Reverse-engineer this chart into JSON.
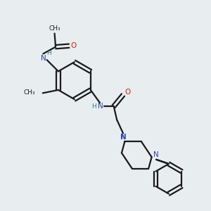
{
  "background_color": "#e8edf0",
  "bond_color": "#1a1a1a",
  "N_color": "#2244bb",
  "O_color": "#cc2200",
  "H_color": "#2a8080",
  "line_width": 1.6,
  "figsize": [
    3.0,
    3.0
  ],
  "dpi": 100,
  "xlim": [
    0,
    10
  ],
  "ylim": [
    0,
    10
  ]
}
